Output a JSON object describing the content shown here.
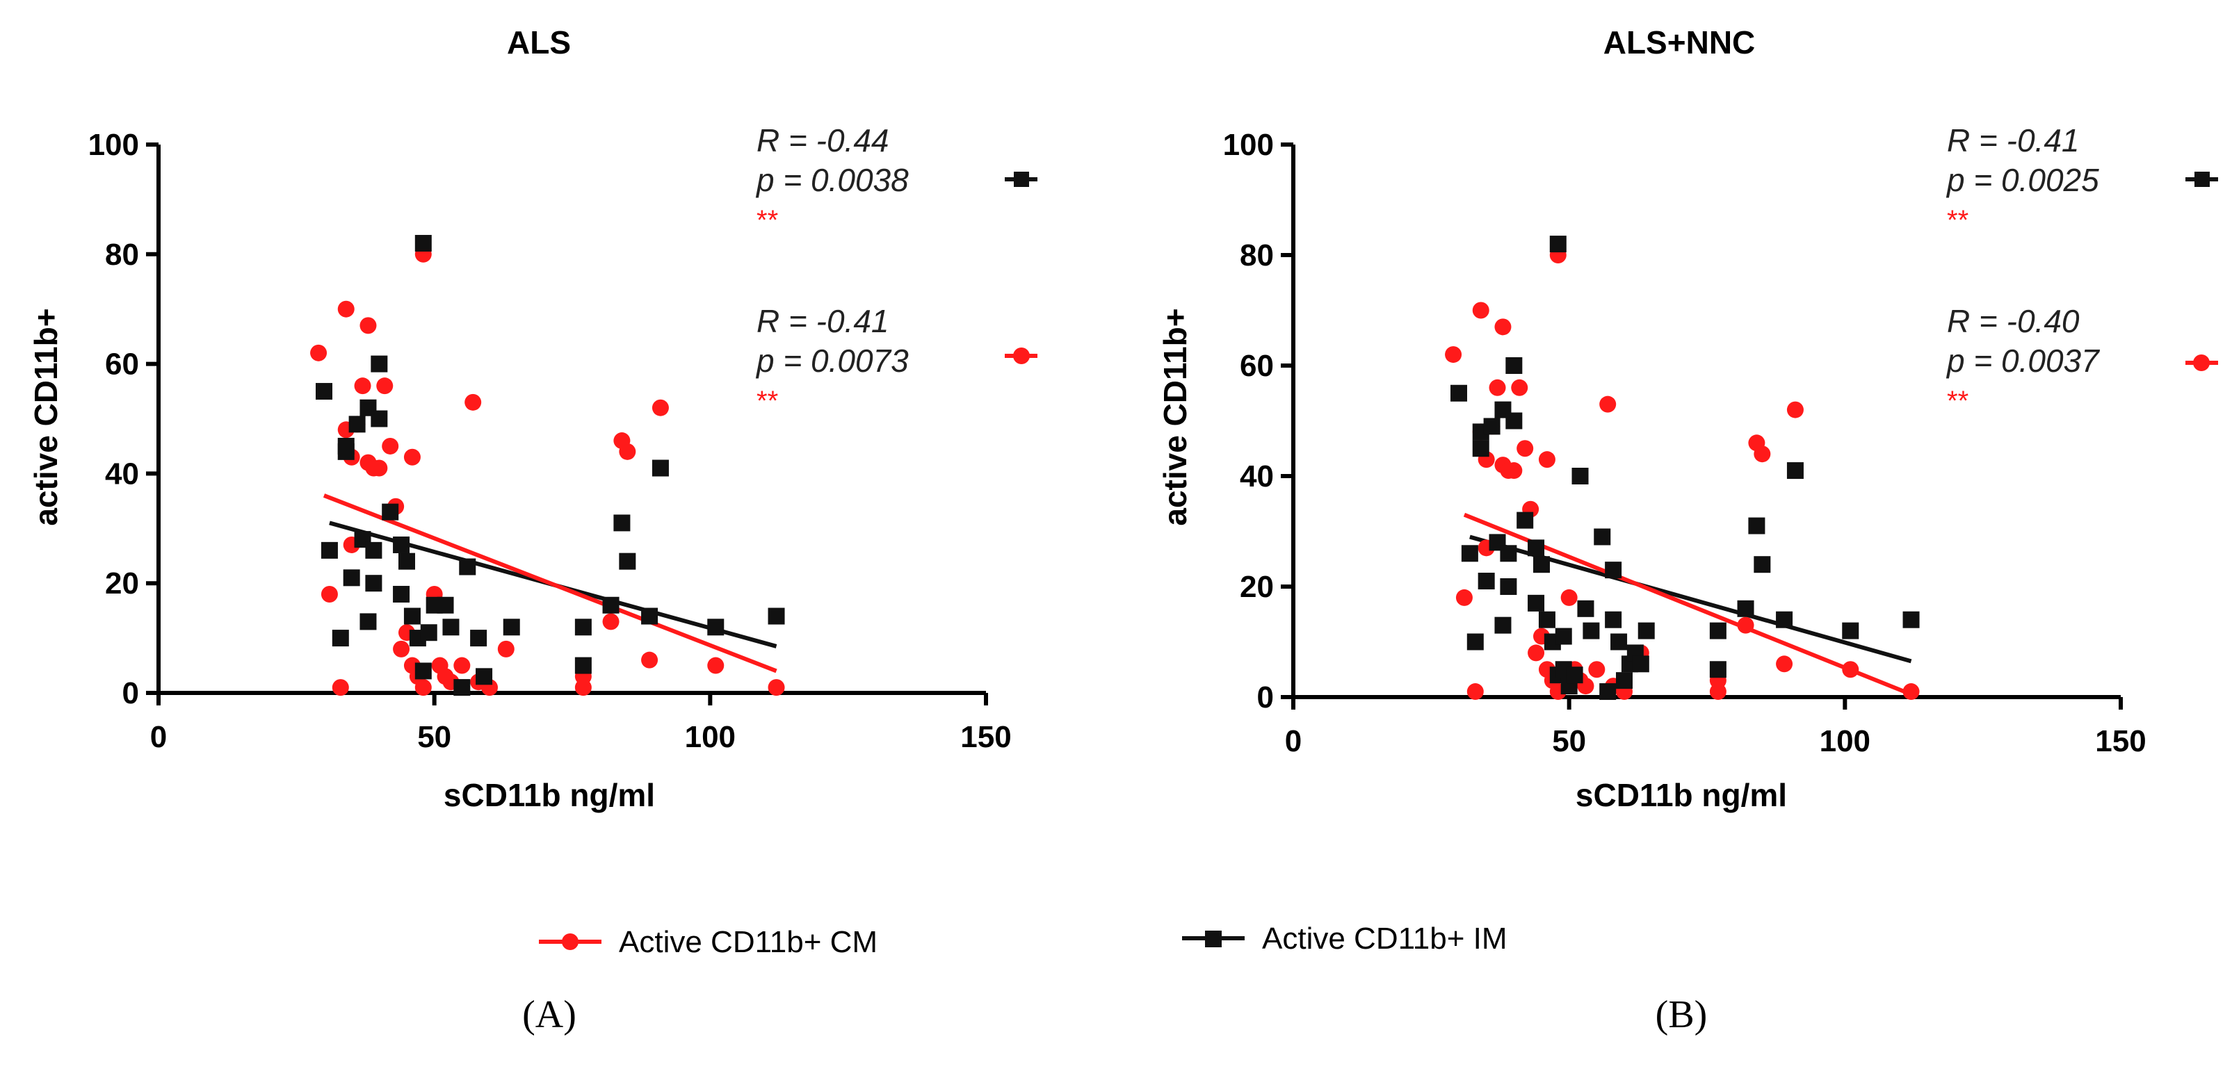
{
  "colors": {
    "cm": "#ff1a1a",
    "im": "#111111",
    "axis": "#000000"
  },
  "legend": [
    {
      "name": "Active CD11b+ CM",
      "color": "#ff1a1a",
      "marker": "circle"
    },
    {
      "name": "Active CD11b+ IM",
      "color": "#111111",
      "marker": "square"
    }
  ],
  "chart_data": [
    {
      "type": "scatter",
      "panel_label": "(A)",
      "title": "ALS",
      "xlabel": "sCD11b ng/ml",
      "ylabel": "active CD11b+",
      "xlim": [
        0,
        150
      ],
      "ylim": [
        0,
        100
      ],
      "xticks": [
        0,
        50,
        100,
        150
      ],
      "yticks": [
        0,
        20,
        40,
        60,
        80,
        100
      ],
      "stats": [
        {
          "series": "Active CD11b+ IM",
          "r_text": "R = -0.44",
          "p_text": "p = 0.0038",
          "stars": "**"
        },
        {
          "series": "Active CD11b+ CM",
          "r_text": "R = -0.41",
          "p_text": "p = 0.0073",
          "stars": "**"
        }
      ],
      "series": [
        {
          "name": "Active CD11b+ IM",
          "marker": "square",
          "color": "#111111",
          "fit": {
            "x": [
              31,
              112
            ],
            "y": [
              31,
              8.5
            ]
          },
          "points": [
            [
              30,
              55
            ],
            [
              31,
              26
            ],
            [
              33,
              10
            ],
            [
              34,
              45
            ],
            [
              34,
              44
            ],
            [
              35,
              21
            ],
            [
              36,
              49
            ],
            [
              37,
              28
            ],
            [
              38,
              52
            ],
            [
              38,
              13
            ],
            [
              39,
              20
            ],
            [
              39,
              26
            ],
            [
              40,
              60
            ],
            [
              40,
              50
            ],
            [
              42,
              33
            ],
            [
              44,
              27
            ],
            [
              44,
              18
            ],
            [
              45,
              24
            ],
            [
              46,
              14
            ],
            [
              47,
              10
            ],
            [
              48,
              4
            ],
            [
              48,
              82
            ],
            [
              49,
              11
            ],
            [
              50,
              16
            ],
            [
              52,
              16
            ],
            [
              53,
              12
            ],
            [
              55,
              1
            ],
            [
              56,
              23
            ],
            [
              58,
              10
            ],
            [
              59,
              3
            ],
            [
              64,
              12
            ],
            [
              77,
              12
            ],
            [
              77,
              5
            ],
            [
              82,
              16
            ],
            [
              84,
              31
            ],
            [
              85,
              24
            ],
            [
              89,
              14
            ],
            [
              91,
              41
            ],
            [
              101,
              12
            ],
            [
              112,
              14
            ]
          ]
        },
        {
          "name": "Active CD11b+ CM",
          "marker": "circle",
          "color": "#ff1a1a",
          "fit": {
            "x": [
              30,
              112
            ],
            "y": [
              36,
              4
            ]
          },
          "points": [
            [
              29,
              62
            ],
            [
              31,
              18
            ],
            [
              33,
              1
            ],
            [
              34,
              70
            ],
            [
              34,
              48
            ],
            [
              35,
              27
            ],
            [
              35,
              43
            ],
            [
              36,
              49
            ],
            [
              37,
              56
            ],
            [
              38,
              67
            ],
            [
              38,
              42
            ],
            [
              39,
              41
            ],
            [
              40,
              41
            ],
            [
              41,
              56
            ],
            [
              42,
              45
            ],
            [
              43,
              34
            ],
            [
              44,
              8
            ],
            [
              45,
              11
            ],
            [
              46,
              43
            ],
            [
              46,
              5
            ],
            [
              47,
              3
            ],
            [
              48,
              1
            ],
            [
              48,
              80
            ],
            [
              50,
              18
            ],
            [
              51,
              5
            ],
            [
              52,
              3
            ],
            [
              53,
              2
            ],
            [
              55,
              5
            ],
            [
              57,
              53
            ],
            [
              58,
              2
            ],
            [
              60,
              1
            ],
            [
              63,
              8
            ],
            [
              77,
              1
            ],
            [
              77,
              3
            ],
            [
              82,
              13
            ],
            [
              84,
              46
            ],
            [
              85,
              44
            ],
            [
              89,
              6
            ],
            [
              91,
              52
            ],
            [
              101,
              5
            ],
            [
              112,
              1
            ]
          ]
        }
      ]
    },
    {
      "type": "scatter",
      "panel_label": "(B)",
      "title": "ALS+NNC",
      "xlabel": "sCD11b ng/ml",
      "ylabel": "active CD11b+",
      "xlim": [
        0,
        150
      ],
      "ylim": [
        0,
        100
      ],
      "xticks": [
        0,
        50,
        100,
        150
      ],
      "yticks": [
        0,
        20,
        40,
        60,
        80,
        100
      ],
      "stats": [
        {
          "series": "Active CD11b+ IM",
          "r_text": "R = -0.41",
          "p_text": "p = 0.0025",
          "stars": "**"
        },
        {
          "series": "Active CD11b+ CM",
          "r_text": "R = -0.40",
          "p_text": "p = 0.0037",
          "stars": "**"
        }
      ],
      "series": [
        {
          "name": "Active CD11b+ IM",
          "marker": "square",
          "color": "#111111",
          "fit": {
            "x": [
              32,
              112
            ],
            "y": [
              29,
              6.5
            ]
          },
          "points": [
            [
              30,
              55
            ],
            [
              32,
              26
            ],
            [
              33,
              10
            ],
            [
              34,
              45
            ],
            [
              34,
              48
            ],
            [
              35,
              21
            ],
            [
              36,
              49
            ],
            [
              37,
              28
            ],
            [
              38,
              52
            ],
            [
              38,
              13
            ],
            [
              39,
              20
            ],
            [
              39,
              26
            ],
            [
              40,
              60
            ],
            [
              40,
              50
            ],
            [
              42,
              32
            ],
            [
              44,
              27
            ],
            [
              44,
              17
            ],
            [
              45,
              24
            ],
            [
              46,
              14
            ],
            [
              47,
              10
            ],
            [
              48,
              4
            ],
            [
              48,
              82
            ],
            [
              49,
              5
            ],
            [
              49,
              11
            ],
            [
              50,
              2
            ],
            [
              51,
              4
            ],
            [
              52,
              40
            ],
            [
              53,
              16
            ],
            [
              54,
              12
            ],
            [
              56,
              29
            ],
            [
              57,
              1
            ],
            [
              58,
              23
            ],
            [
              58,
              14
            ],
            [
              59,
              10
            ],
            [
              60,
              3
            ],
            [
              61,
              6
            ],
            [
              62,
              8
            ],
            [
              63,
              6
            ],
            [
              64,
              12
            ],
            [
              77,
              12
            ],
            [
              77,
              5
            ],
            [
              82,
              16
            ],
            [
              84,
              31
            ],
            [
              85,
              24
            ],
            [
              89,
              14
            ],
            [
              91,
              41
            ],
            [
              101,
              12
            ],
            [
              112,
              14
            ]
          ]
        },
        {
          "name": "Active CD11b+ CM",
          "marker": "circle",
          "color": "#ff1a1a",
          "fit": {
            "x": [
              31,
              112
            ],
            "y": [
              33,
              0.5
            ]
          },
          "points": [
            [
              29,
              62
            ],
            [
              31,
              18
            ],
            [
              33,
              1
            ],
            [
              34,
              70
            ],
            [
              34,
              48
            ],
            [
              35,
              27
            ],
            [
              35,
              43
            ],
            [
              36,
              49
            ],
            [
              37,
              56
            ],
            [
              38,
              67
            ],
            [
              38,
              42
            ],
            [
              39,
              41
            ],
            [
              40,
              41
            ],
            [
              41,
              56
            ],
            [
              42,
              45
            ],
            [
              43,
              34
            ],
            [
              44,
              8
            ],
            [
              45,
              11
            ],
            [
              46,
              43
            ],
            [
              46,
              5
            ],
            [
              47,
              3
            ],
            [
              48,
              1
            ],
            [
              48,
              80
            ],
            [
              50,
              18
            ],
            [
              51,
              5
            ],
            [
              52,
              3
            ],
            [
              53,
              2
            ],
            [
              55,
              5
            ],
            [
              57,
              53
            ],
            [
              58,
              2
            ],
            [
              60,
              1
            ],
            [
              63,
              8
            ],
            [
              77,
              1
            ],
            [
              77,
              3
            ],
            [
              82,
              13
            ],
            [
              84,
              46
            ],
            [
              85,
              44
            ],
            [
              89,
              6
            ],
            [
              91,
              52
            ],
            [
              101,
              5
            ],
            [
              112,
              1
            ]
          ]
        }
      ]
    }
  ]
}
